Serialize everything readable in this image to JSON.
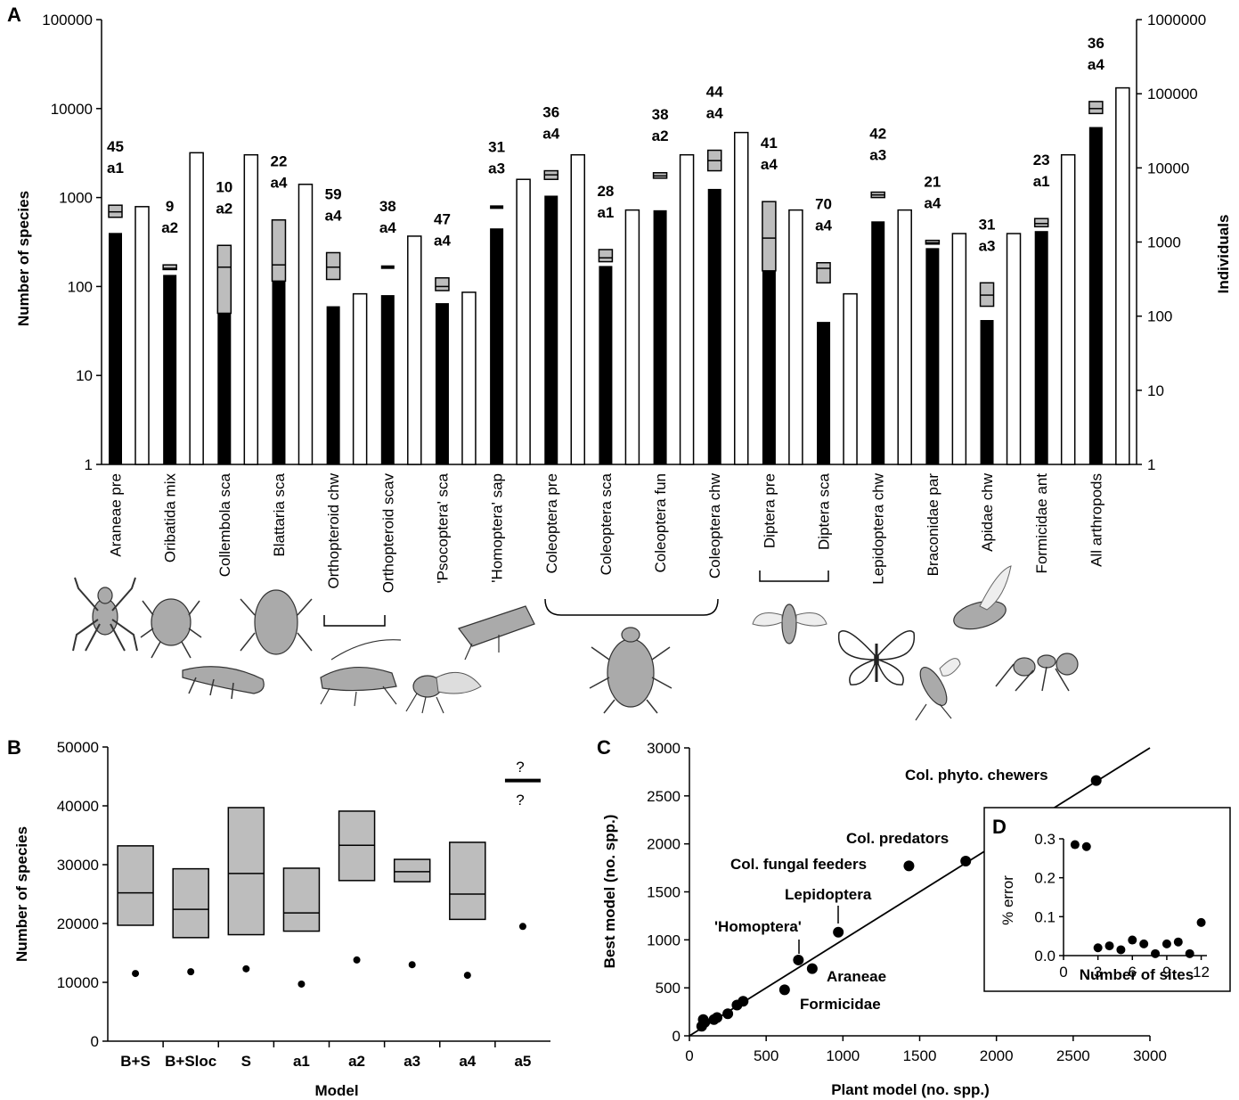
{
  "panels": {
    "A": {
      "label": "A",
      "ylabel_left": "Number of species",
      "ylabel_right": "Individuals",
      "left_ticks": [
        "1",
        "10",
        "100",
        "1000",
        "10000",
        "100000"
      ],
      "right_ticks": [
        "1",
        "10",
        "100",
        "1000",
        "10000",
        "100000",
        "1000000"
      ],
      "brackets": [
        "Orthopteroid",
        "Coleoptera",
        "Diptera"
      ],
      "icons": [
        "spider-icon",
        "mite-icon",
        "springtail-icon",
        "cockroach-icon",
        "cricket-icon",
        "psocid-icon",
        "leafhopper-icon",
        "beetle-icon",
        "fly-icon",
        "butterfly-icon",
        "wasp-icon",
        "bee-icon",
        "ant-icon"
      ]
    },
    "B": {
      "label": "B",
      "xlabel": "Model",
      "ylabel": "Number of species",
      "question_marks": [
        "?",
        "?"
      ]
    },
    "C": {
      "label": "C",
      "xlabel": "Plant model (no. spp.)",
      "ylabel": "Best model (no. spp.)",
      "annotations": [
        "Col. phyto. chewers",
        "Col. predators",
        "Col. fungal feeders",
        "Lepidoptera",
        "'Homoptera'",
        "Araneae",
        "Formicidae"
      ]
    },
    "D": {
      "label": "D",
      "xlabel": "Number of sites",
      "ylabel": "% error"
    }
  },
  "chart_data": [
    {
      "panel": "A",
      "type": "bar",
      "yscale": "log",
      "ylim_left": [
        1,
        100000
      ],
      "ylim_right": [
        1,
        1000000
      ],
      "categories": [
        "Araneae pre",
        "Oribatida mix",
        "Collembola sca",
        "Blattaria sca",
        "Orthopteroid chw",
        "Orthopteroid scav",
        "'Psocoptera' sca",
        "'Homoptera' sap",
        "Coleoptera pre",
        "Coleoptera sca",
        "Coleoptera fun",
        "Coleoptera chw",
        "Diptera pre",
        "Diptera sca",
        "Lepidoptera chw",
        "Braconidae par",
        "Apidae chw",
        "Formicidae ant",
        "All arthropods"
      ],
      "annotation_top": [
        "45",
        "9",
        "10",
        "22",
        "59",
        "38",
        "47",
        "31",
        "36",
        "28",
        "38",
        "44",
        "41",
        "70",
        "42",
        "21",
        "31",
        "23",
        "36"
      ],
      "annotation_model": [
        "a1",
        "a2",
        "a2",
        "a4",
        "a4",
        "a4",
        "a4",
        "a3",
        "a4",
        "a1",
        "a2",
        "a4",
        "a4",
        "a4",
        "a3",
        "a4",
        "a3",
        "a1",
        "a4"
      ],
      "observed_species": [
        400,
        135,
        50,
        115,
        60,
        80,
        65,
        450,
        1050,
        170,
        720,
        1250,
        150,
        40,
        540,
        270,
        42,
        420,
        6200
      ],
      "estimate_low": [
        600,
        155,
        50,
        115,
        120,
        160,
        90,
        760,
        1600,
        190,
        1650,
        2000,
        150,
        110,
        1000,
        300,
        60,
        470,
        8800
      ],
      "estimate_median": [
        690,
        160,
        165,
        175,
        165,
        165,
        100,
        780,
        1800,
        210,
        1750,
        2600,
        350,
        160,
        1070,
        310,
        80,
        510,
        10000
      ],
      "estimate_high": [
        820,
        175,
        290,
        560,
        240,
        175,
        125,
        810,
        2000,
        260,
        1900,
        3400,
        900,
        185,
        1150,
        330,
        110,
        580,
        12000
      ],
      "individuals": [
        3000,
        16000,
        15000,
        6000,
        200,
        1200,
        210,
        7000,
        15000,
        2700,
        15000,
        30000,
        2700,
        200,
        2700,
        1300,
        1300,
        15000,
        120000
      ]
    },
    {
      "panel": "B",
      "type": "box",
      "categories": [
        "B+S",
        "B+Sloc",
        "S",
        "a1",
        "a2",
        "a3",
        "a4",
        "a5"
      ],
      "box_low": [
        19700,
        17600,
        18100,
        18700,
        27300,
        27100,
        20700,
        null
      ],
      "box_median": [
        25200,
        22400,
        28500,
        21800,
        33300,
        28800,
        25000,
        44300
      ],
      "box_high": [
        33200,
        29300,
        39700,
        29400,
        39100,
        30900,
        33800,
        null
      ],
      "points": [
        11500,
        11800,
        12300,
        9700,
        13800,
        13000,
        11200,
        19500
      ],
      "ylim": [
        0,
        50000
      ],
      "yticks": [
        "0",
        "10000",
        "20000",
        "30000",
        "40000",
        "50000"
      ]
    },
    {
      "panel": "C",
      "type": "scatter",
      "xlim": [
        0,
        3000
      ],
      "ylim": [
        0,
        3000
      ],
      "xticks": [
        "0",
        "500",
        "1000",
        "1500",
        "2000",
        "2500",
        "3000"
      ],
      "yticks": [
        "0",
        "500",
        "1000",
        "1500",
        "2000",
        "2500",
        "3000"
      ],
      "x": [
        2650,
        1800,
        1430,
        970,
        710,
        800,
        620,
        350,
        310,
        250,
        180,
        160,
        100,
        80,
        90
      ],
      "y": [
        2660,
        1820,
        1770,
        1080,
        790,
        700,
        480,
        360,
        320,
        230,
        190,
        170,
        140,
        100,
        170
      ],
      "fit_line": {
        "x": [
          0,
          3000
        ],
        "y": [
          0,
          3000
        ]
      }
    },
    {
      "panel": "D",
      "type": "scatter",
      "xlim": [
        0,
        12.5
      ],
      "ylim": [
        0,
        0.3
      ],
      "xticks": [
        "0",
        "3",
        "6",
        "9",
        "12"
      ],
      "yticks": [
        "0.0",
        "0.1",
        "0.2",
        "0.3"
      ],
      "x": [
        1,
        2,
        3,
        4,
        5,
        6,
        7,
        8,
        9,
        10,
        11,
        12
      ],
      "y": [
        0.285,
        0.28,
        0.02,
        0.025,
        0.015,
        0.04,
        0.03,
        0.005,
        0.03,
        0.035,
        0.005,
        0.085
      ]
    }
  ]
}
